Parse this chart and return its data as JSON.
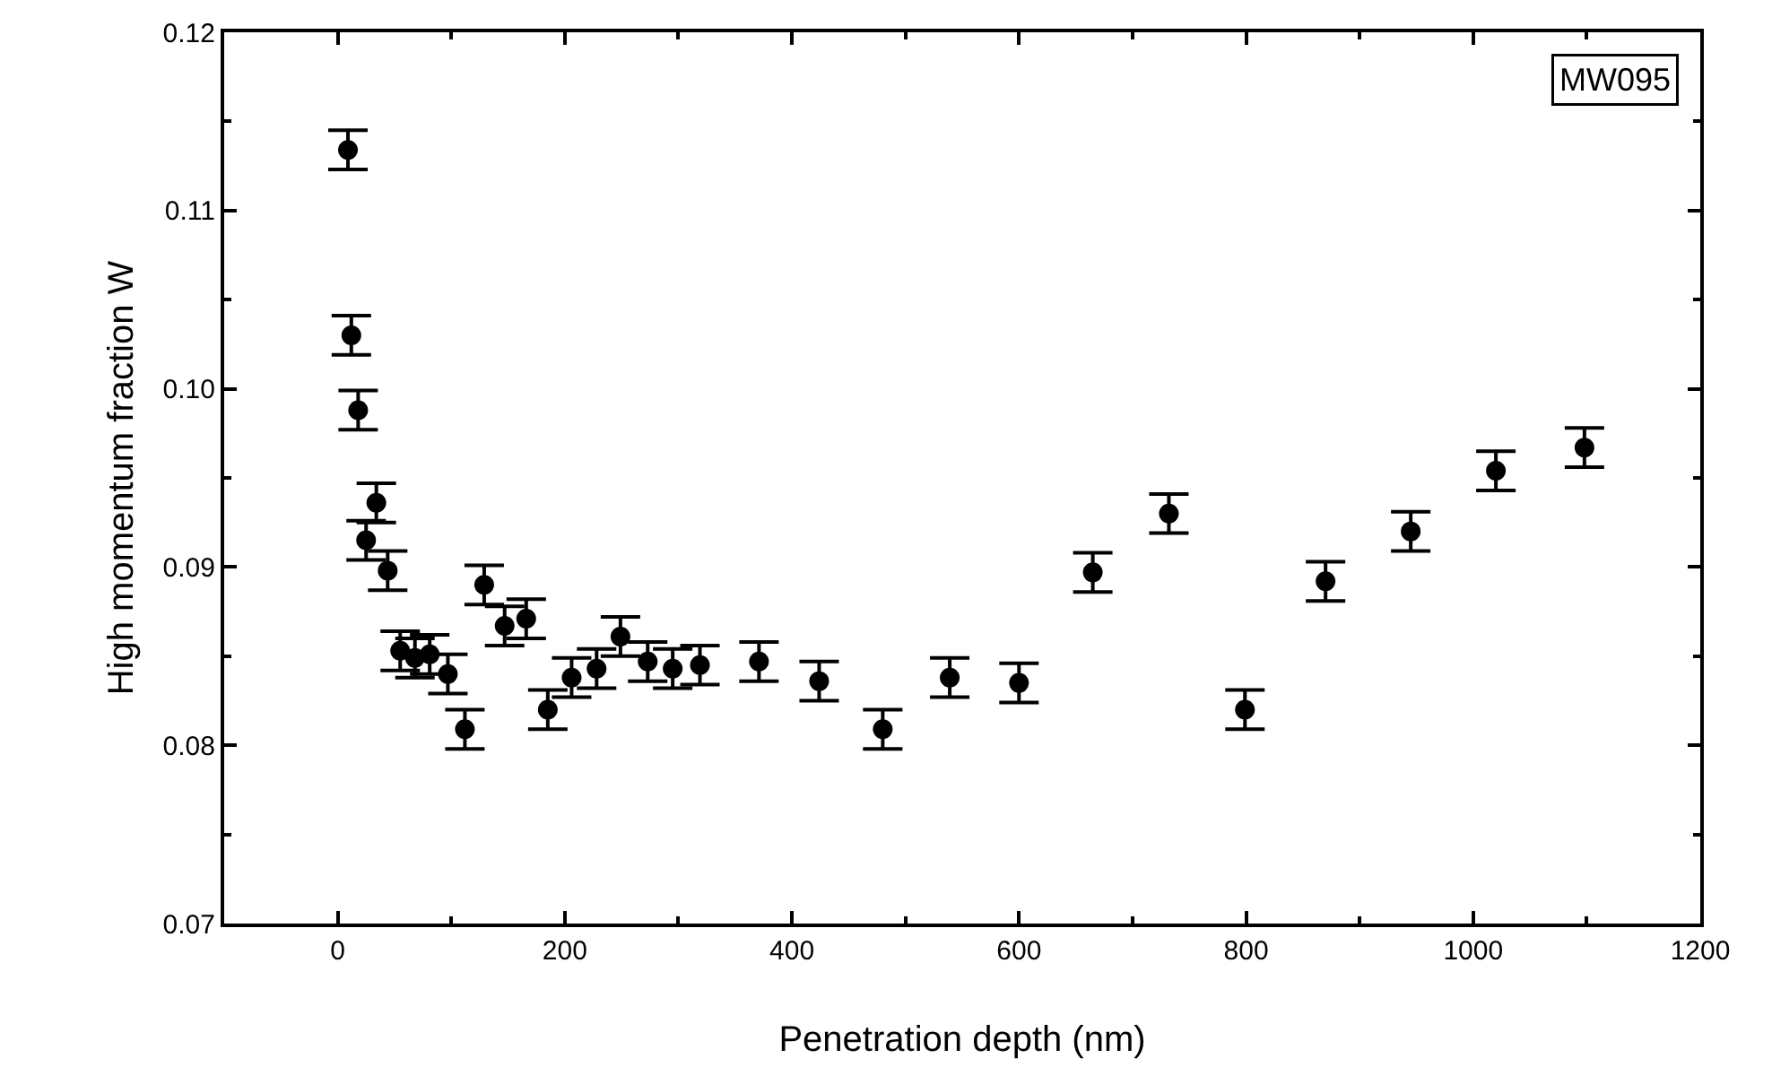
{
  "chart_data": {
    "type": "scatter",
    "xlabel": "Penetration depth (nm)",
    "ylabel": "High momentum fraction W",
    "annotations": [
      "MW095"
    ],
    "marker": "circle",
    "xlim": [
      -100,
      1200
    ],
    "xticks": [
      0,
      200,
      400,
      600,
      800,
      1000,
      1200
    ],
    "ylim": [
      0.07,
      0.12
    ],
    "yticks": [
      0.07,
      0.08,
      0.09,
      {
        "value": 0.1,
        "label": "0.10"
      },
      0.11,
      0.12
    ],
    "series": [
      {
        "color": "#000000",
        "x": [
          9,
          12,
          18,
          34,
          25,
          44,
          55,
          68,
          81,
          97,
          112,
          129,
          147,
          166,
          185,
          206,
          228,
          249,
          273,
          295,
          319,
          371,
          424,
          480,
          539,
          600,
          665,
          732,
          799,
          870,
          945,
          1020,
          1098
        ],
        "values": [
          0.1134,
          0.103,
          0.0988,
          0.0936,
          0.0915,
          0.0898,
          0.0853,
          0.0849,
          0.0851,
          0.084,
          0.0809,
          0.089,
          0.0867,
          0.0871,
          0.082,
          0.0838,
          0.0843,
          0.0861,
          0.0847,
          0.0843,
          0.0845,
          0.0847,
          0.0836,
          0.0809,
          0.0838,
          0.0835,
          0.0897,
          0.093,
          0.082,
          0.0892,
          0.092,
          0.0954,
          0.0967
        ],
        "errors": [
          0.0011,
          0.0011,
          0.0011,
          0.0011,
          0.0011,
          0.0011,
          0.0011,
          0.0011,
          0.0011,
          0.0011,
          0.0011,
          0.0011,
          0.0011,
          0.0011,
          0.0011,
          0.0011,
          0.0011,
          0.0011,
          0.0011,
          0.0011,
          0.0011,
          0.0011,
          0.0011,
          0.0011,
          0.0011,
          0.0011,
          0.0011,
          0.0011,
          0.0011,
          0.0011,
          0.0011,
          0.0011,
          0.0011
        ]
      }
    ]
  }
}
